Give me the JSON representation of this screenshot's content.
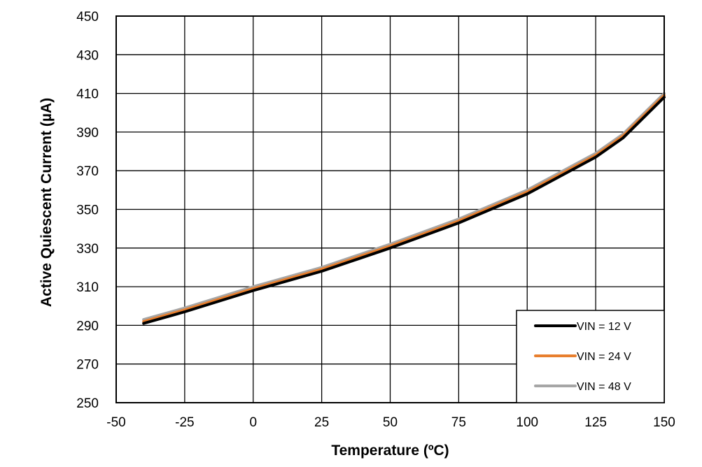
{
  "chart_data": {
    "type": "line",
    "xlabel": "Temperature (ºC)",
    "ylabel": "Active Quiescent Current (µA)",
    "xlim": [
      -50,
      150
    ],
    "ylim": [
      250,
      450
    ],
    "xticks": [
      -50,
      -25,
      0,
      25,
      50,
      75,
      100,
      125,
      150
    ],
    "yticks": [
      250,
      270,
      290,
      310,
      330,
      350,
      370,
      390,
      410,
      430,
      450
    ],
    "grid": true,
    "legend_position": "bottom-right",
    "series": [
      {
        "name": "VIN = 12 V",
        "color": "#000000",
        "x": [
          -40,
          -25,
          0,
          25,
          50,
          75,
          100,
          125,
          135,
          150
        ],
        "y": [
          291,
          297,
          308,
          318,
          330,
          343,
          358,
          377,
          387,
          408
        ]
      },
      {
        "name": "VIN = 24 V",
        "color": "#e87f2e",
        "x": [
          -40,
          -25,
          0,
          25,
          50,
          75,
          100,
          125,
          135,
          150
        ],
        "y": [
          292,
          298,
          309,
          319,
          331,
          344,
          359,
          378,
          388,
          409
        ]
      },
      {
        "name": "VIN = 48 V",
        "color": "#a6a6a6",
        "x": [
          -40,
          -25,
          0,
          25,
          50,
          75,
          100,
          125,
          135,
          150
        ],
        "y": [
          293,
          299,
          310,
          320,
          332,
          345,
          360,
          379,
          389,
          410
        ]
      }
    ]
  }
}
